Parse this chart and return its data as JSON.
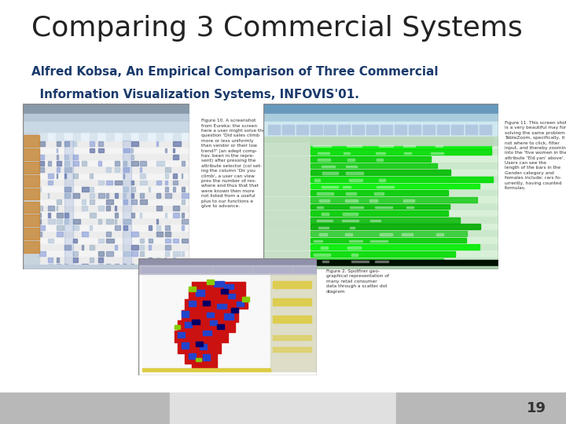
{
  "title": "Comparing 3 Commercial Systems",
  "subtitle_line1": "Alfred Kobsa, An Empirical Comparison of Three Commercial",
  "subtitle_line2": "  Information Visualization Systems, INFOVIS'01.",
  "title_fontsize": 26,
  "subtitle_fontsize": 11,
  "title_color": "#222222",
  "subtitle_color": "#1a3a6b",
  "background_color": "#ffffff",
  "page_number": "19",
  "page_number_color": "#333333",
  "page_number_fontsize": 13,
  "footer_left_color": "#b8b8b8",
  "footer_mid_color": "#e0e0e0",
  "footer_right_color": "#b8b8b8"
}
